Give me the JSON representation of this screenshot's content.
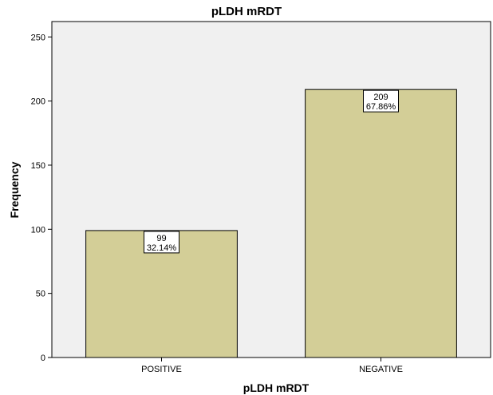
{
  "chart_data": {
    "type": "bar",
    "title": "pLDH mRDT",
    "xlabel": "pLDH mRDT",
    "ylabel": "Frequency",
    "categories": [
      "POSITIVE",
      "NEGATIVE"
    ],
    "values": [
      99,
      209
    ],
    "data_labels": [
      {
        "count": "99",
        "percent": "32.14%"
      },
      {
        "count": "209",
        "percent": "67.86%"
      }
    ],
    "ylim": [
      0,
      262
    ],
    "yticks": [
      0,
      50,
      100,
      150,
      200,
      250
    ],
    "grid": false,
    "legend": "none",
    "colors": {
      "plot_background": "#f0f0f0",
      "bar_fill": "#d3ce97",
      "bar_stroke": "#000000",
      "label_box": "#ffffff"
    }
  }
}
